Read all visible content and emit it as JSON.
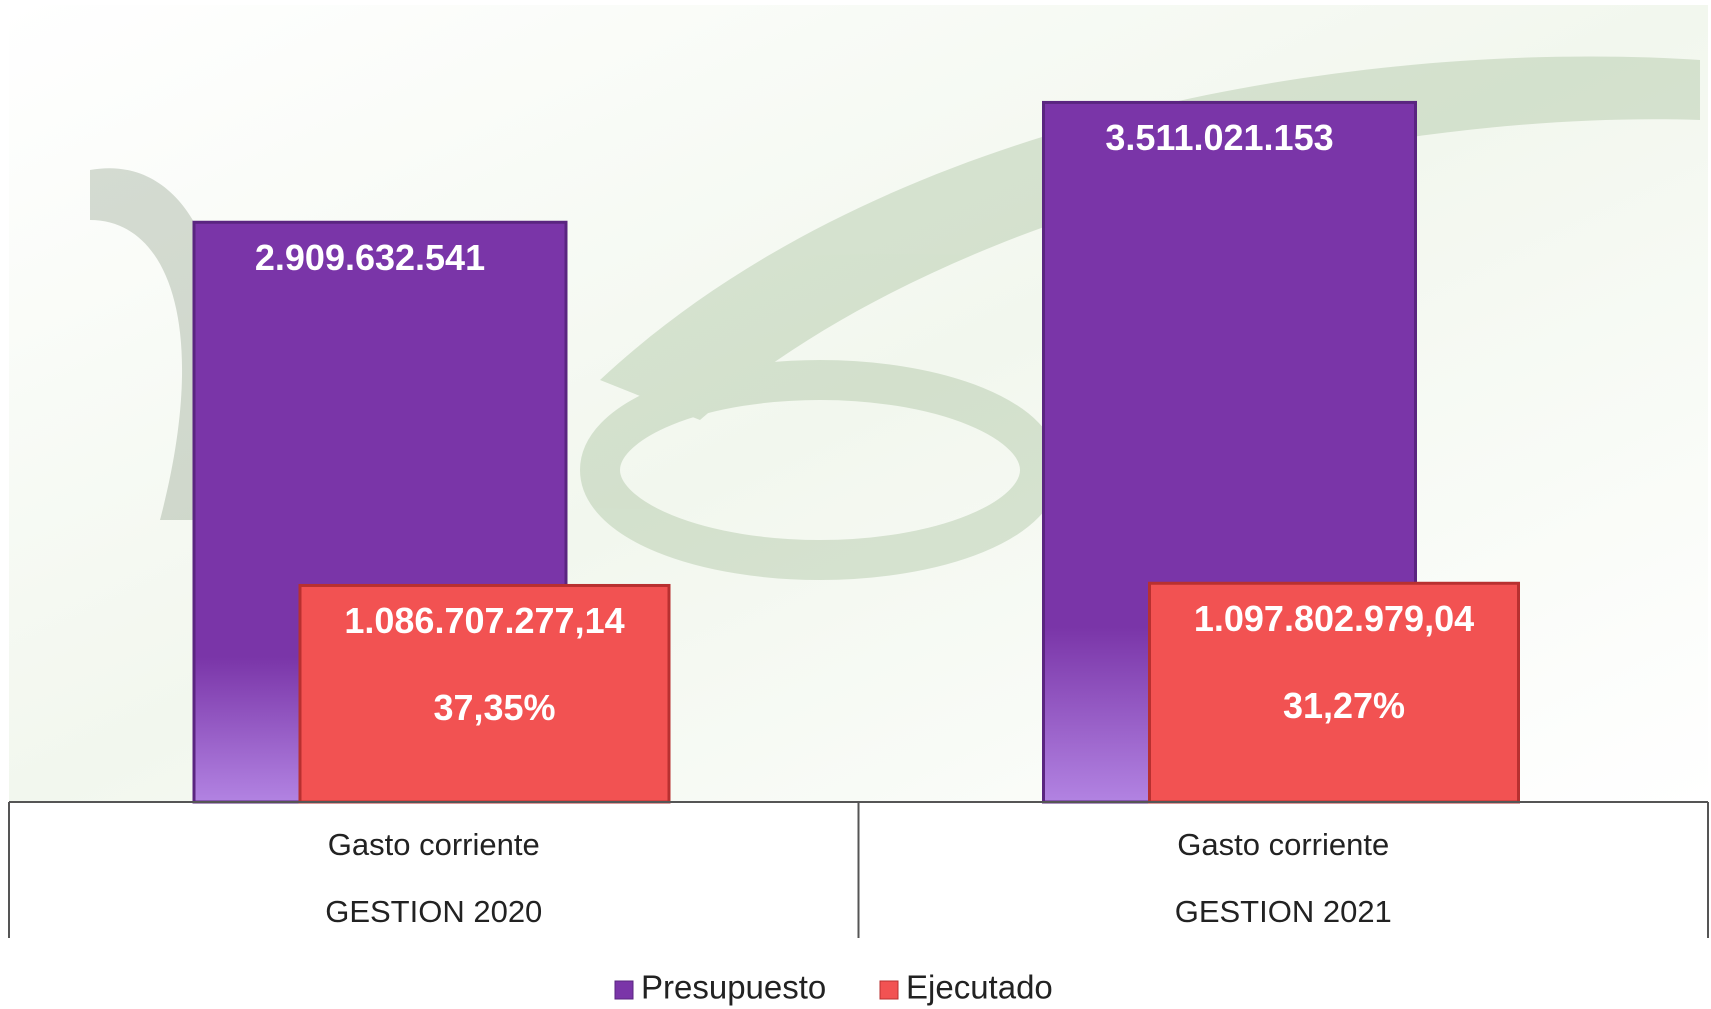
{
  "chart_data": {
    "type": "bar",
    "categories": [
      "Gasto corriente",
      "Gasto corriente"
    ],
    "groups": [
      "GESTION 2020",
      "GESTION 2021"
    ],
    "series": [
      {
        "name": "Presupuesto",
        "color": "#7a35a8",
        "values": [
          2909632541,
          3511021153
        ],
        "value_labels": [
          "2.909.632.541",
          "3.511.021.153"
        ]
      },
      {
        "name": "Ejecutado",
        "color": "#f25252",
        "values": [
          1086707277.14,
          1097802979.04
        ],
        "value_labels": [
          "1.086.707.277,14",
          "1.097.802.979,04"
        ],
        "share_labels": [
          "37,35%",
          "31,27%"
        ]
      }
    ],
    "ylim": [
      0,
      4000000000
    ],
    "legend": "bottom"
  }
}
